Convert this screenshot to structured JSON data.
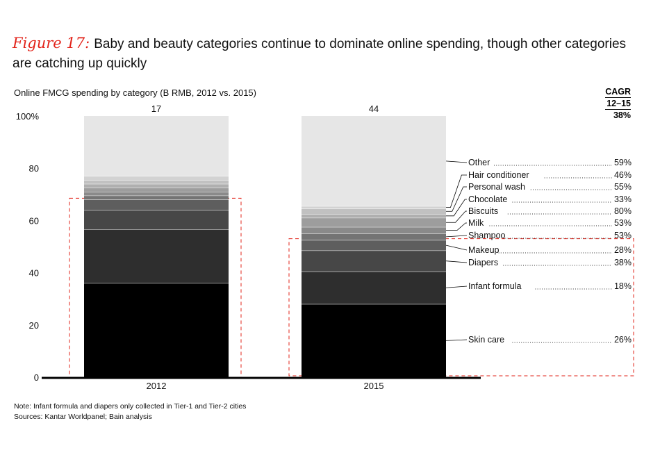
{
  "figure": {
    "label": "Figure 17:",
    "title": "Baby and beauty categories continue to dominate online spending, though other categories are catching up quickly"
  },
  "subtitle": "Online FMCG spending by category (B RMB, 2012 vs. 2015)",
  "cagr_header": {
    "line1": "CAGR",
    "line2": "12–15",
    "total": "38%"
  },
  "notes": {
    "note": "Note: Infant formula and diapers only collected in Tier-1 and Tier-2 cities",
    "sources": "Sources: Kantar Worldpanel; Bain analysis"
  },
  "colors": {
    "skin_care": "#000000",
    "infant_formula": "#2e2e2e",
    "diapers": "#474747",
    "makeup": "#5e5e5e",
    "shampoo": "#747474",
    "milk": "#8a8a8a",
    "biscuits": "#9d9d9d",
    "chocolate": "#afafaf",
    "personal_wash": "#c1c1c1",
    "hair_conditioner": "#d2d2d2",
    "other": "#e6e6e6",
    "highlight": "#e2231a"
  },
  "chart_data": {
    "type": "stacked_bar_100",
    "ylabel_ticks": [
      "0",
      "20",
      "40",
      "60",
      "80",
      "100%"
    ],
    "ylim": [
      0,
      100
    ],
    "categories": [
      "2012",
      "2015"
    ],
    "totals": [
      "17",
      "44"
    ],
    "series": [
      {
        "key": "skin_care",
        "name": "Skin care",
        "cagr": "26%",
        "values": [
          36,
          28
        ]
      },
      {
        "key": "infant_formula",
        "name": "Infant formula",
        "cagr": "18%",
        "values": [
          20.5,
          12.5
        ]
      },
      {
        "key": "diapers",
        "name": "Diapers",
        "cagr": "38%",
        "values": [
          7.5,
          8
        ]
      },
      {
        "key": "makeup",
        "name": "Makeup",
        "cagr": "28%",
        "values": [
          4,
          4
        ]
      },
      {
        "key": "shampoo",
        "name": "Shampoo",
        "cagr": "53%",
        "values": [
          1.5,
          2.5
        ]
      },
      {
        "key": "milk",
        "name": "Milk",
        "cagr": "53%",
        "values": [
          1.5,
          2.5
        ]
      },
      {
        "key": "biscuits",
        "name": "Biscuits",
        "cagr": "80%",
        "values": [
          1.5,
          3.5
        ]
      },
      {
        "key": "chocolate",
        "name": "Chocolate",
        "cagr": "33%",
        "values": [
          1.5,
          1.5
        ]
      },
      {
        "key": "personal_wash",
        "name": "Personal wash",
        "cagr": "55%",
        "values": [
          1.5,
          2
        ]
      },
      {
        "key": "hair_conditioner",
        "name": "Hair conditioner",
        "cagr": "46%",
        "values": [
          1.5,
          1
        ]
      },
      {
        "key": "other",
        "name": "Other",
        "cagr": "59%",
        "values": [
          23,
          34.5
        ]
      }
    ]
  }
}
